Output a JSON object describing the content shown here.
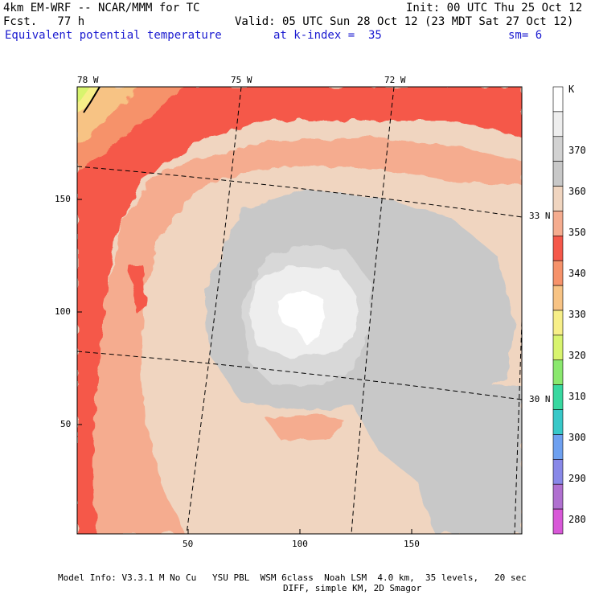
{
  "header": {
    "title_left_1": "4km EM-WRF -- NCAR/MMM for TC",
    "title_left_2": "Fcst.   77 h",
    "title_right_1": "Init: 00 UTC Thu 25 Oct 12",
    "title_right_2": "Valid: 05 UTC Sun 28 Oct 12 (23 MDT Sat 27 Oct 12)",
    "field_name": "Equivalent potential temperature",
    "level": "at k-index =  35",
    "smoothing": "sm= 6"
  },
  "axes": {
    "lon_labels": [
      "78 W",
      "75 W",
      "72 W"
    ],
    "lat_labels": [
      "33 N",
      "30 N"
    ],
    "y_ticks": [
      "150",
      "100",
      "50"
    ],
    "x_ticks": [
      "50",
      "100",
      "150"
    ]
  },
  "colorbar": {
    "unit": "K",
    "labels": [
      "370",
      "360",
      "350",
      "340",
      "330",
      "320",
      "310",
      "300",
      "290",
      "280"
    ],
    "colors": [
      "#ffffff",
      "#eeeeee",
      "#d2d2d2",
      "#c8c8c8",
      "#f0d5c0",
      "#f5ac8f",
      "#f5584a",
      "#f6926a",
      "#f7c384",
      "#f7ef88",
      "#d8f46e",
      "#8ae86e",
      "#38d8a0",
      "#38c8c8",
      "#6ea0f0",
      "#8888e8",
      "#b070d0",
      "#d858d8"
    ]
  },
  "footer": {
    "line1": "Model Info: V3.3.1 M No Cu   YSU PBL  WSM 6class  Noah LSM  4.0 km,  35 levels,   20 sec",
    "line2": "DIFF, simple KM, 2D Smagor"
  }
}
